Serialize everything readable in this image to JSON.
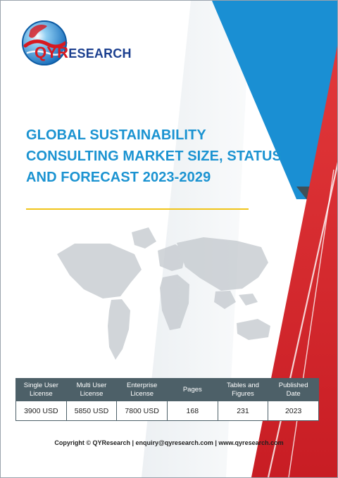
{
  "brand": {
    "logo_text_qyr": "QYR",
    "logo_text_rest": "ESEARCH",
    "colors": {
      "logo_red": "#d71920",
      "logo_blue": "#1b3f8f",
      "title_blue": "#1b93d1",
      "accent_red": "#d9282f",
      "accent_gray": "#3e5059",
      "rule_yellow": "#f0c419"
    }
  },
  "report": {
    "title_lines": [
      "GLOBAL SUSTAINABILITY",
      "CONSULTING MARKET SIZE, STATUS",
      "AND FORECAST 2023-2029"
    ]
  },
  "table": {
    "headers": [
      "Single User\nLicense",
      "Multi User\nLicense",
      "Enterprise\nLicense",
      "Pages",
      "Tables and\nFigures",
      "Published\nDate"
    ],
    "values": [
      "3900 USD",
      "5850 USD",
      "7800 USD",
      "168",
      "231",
      "2023"
    ]
  },
  "footer": {
    "text": "Copyright © QYResearch | enquiry@qyresearch.com | www.qyresearch.com"
  }
}
